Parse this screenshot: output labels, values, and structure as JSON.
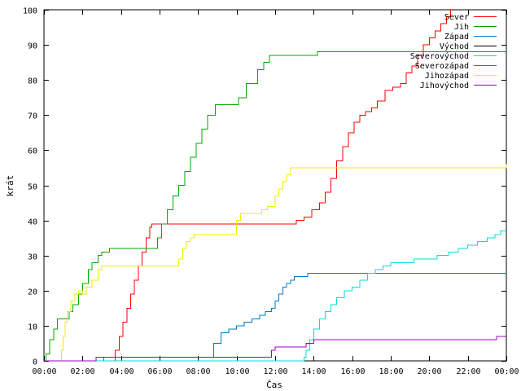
{
  "chart_data": {
    "type": "line",
    "xlabel": "Čas",
    "ylabel": "krát",
    "xlim": [
      0,
      24
    ],
    "ylim": [
      0,
      100
    ],
    "x_tick_labels": [
      "00:00",
      "02:00",
      "04:00",
      "06:00",
      "08:00",
      "10:00",
      "12:00",
      "14:00",
      "16:00",
      "18:00",
      "20:00",
      "22:00",
      "00:00"
    ],
    "y_tick_labels": [
      "0",
      "10",
      "20",
      "30",
      "40",
      "50",
      "60",
      "70",
      "80",
      "90",
      "100"
    ],
    "grid": false,
    "legend_position": "top-right",
    "step": true,
    "series": [
      {
        "name": "Sever",
        "color": "#ff0000",
        "x": [
          0,
          3.5,
          3.7,
          3.9,
          4.1,
          4.3,
          4.5,
          4.7,
          4.9,
          5.1,
          5.3,
          5.5,
          5.6,
          12.9,
          13.1,
          13.5,
          13.9,
          14.3,
          14.6,
          14.9,
          15.2,
          15.5,
          15.8,
          16.1,
          16.4,
          16.7,
          17.0,
          17.3,
          17.7,
          18.1,
          18.5,
          18.8,
          19.1,
          19.4,
          19.7,
          20.0,
          20.3,
          20.6,
          20.9,
          21.1
        ],
        "y": [
          0,
          0,
          3,
          7,
          11,
          15,
          19,
          23,
          27,
          31,
          35,
          38,
          39,
          39,
          40,
          41,
          43,
          45,
          48,
          52,
          57,
          61,
          65,
          68,
          70,
          71,
          72,
          74,
          77,
          78,
          79,
          82,
          84,
          87,
          90,
          92,
          94,
          96,
          98,
          100
        ]
      },
      {
        "name": "Jih",
        "color": "#00aa00",
        "x": [
          0,
          0.1,
          0.3,
          0.5,
          0.7,
          1.0,
          1.3,
          1.5,
          1.8,
          2.0,
          2.3,
          2.5,
          2.8,
          3.0,
          3.4,
          5.6,
          5.9,
          6.1,
          6.4,
          6.7,
          7.0,
          7.3,
          7.6,
          7.9,
          8.2,
          8.5,
          8.9,
          9.2,
          9.5,
          9.8,
          10.1,
          10.5,
          10.8,
          11.1,
          11.4,
          11.7,
          11.9,
          14.2,
          24
        ],
        "y": [
          0,
          2,
          6,
          9,
          12,
          12,
          14,
          16,
          19,
          22,
          26,
          28,
          30,
          31,
          32,
          32,
          35,
          39,
          43,
          47,
          50,
          54,
          58,
          62,
          66,
          70,
          73,
          73,
          73,
          73,
          75,
          79,
          79,
          83,
          85,
          87,
          87,
          88,
          88
        ]
      },
      {
        "name": "Západ",
        "color": "#0077cc",
        "x": [
          0,
          2.8,
          3.1,
          8.7,
          8.8,
          9.2,
          9.6,
          10.0,
          10.4,
          10.8,
          11.2,
          11.5,
          11.8,
          12.0,
          12.2,
          12.4,
          12.6,
          12.8,
          13.0,
          13.3,
          13.7,
          24
        ],
        "y": [
          0,
          0,
          1,
          1,
          5,
          8,
          9,
          10,
          11,
          12,
          13,
          14,
          15,
          17,
          19,
          21,
          22,
          23,
          24,
          24,
          25,
          25
        ]
      },
      {
        "name": "Východ",
        "color": "#000000",
        "x": [
          0,
          24
        ],
        "y": [
          0,
          0
        ]
      },
      {
        "name": "Severovýchod",
        "color": "#00dddd",
        "x": [
          0,
          13.4,
          13.5,
          13.6,
          13.8,
          14.0,
          14.3,
          14.6,
          14.9,
          15.2,
          15.6,
          16.0,
          16.4,
          16.8,
          17.2,
          17.6,
          18.0,
          18.6,
          19.2,
          19.8,
          20.4,
          21.0,
          21.5,
          22.0,
          22.5,
          23.0,
          23.4,
          23.7,
          24
        ],
        "y": [
          0,
          0,
          1,
          3,
          6,
          9,
          12,
          14,
          16,
          18,
          20,
          21,
          23,
          25,
          26,
          27,
          28,
          28,
          29,
          29,
          30,
          31,
          32,
          33,
          34,
          35,
          36,
          37,
          37
        ]
      },
      {
        "name": "Severozápad",
        "color": "#00aa00",
        "x": [
          0,
          0.1,
          0.3,
          0.5,
          0.7,
          1.0,
          1.3,
          1.5,
          1.8,
          2.0,
          2.3,
          2.5,
          2.8,
          3.0,
          3.4,
          5.6,
          5.9,
          6.1,
          6.4,
          6.7,
          7.0,
          7.3,
          7.6,
          7.9,
          8.2,
          8.5,
          8.9,
          9.2,
          9.5,
          9.8,
          10.1,
          10.5,
          10.8,
          11.1,
          11.4,
          11.7,
          11.9,
          14.2,
          24
        ],
        "y": [
          0,
          2,
          6,
          9,
          12,
          12,
          14,
          16,
          19,
          22,
          26,
          28,
          30,
          31,
          32,
          32,
          35,
          39,
          43,
          47,
          50,
          54,
          58,
          62,
          66,
          70,
          73,
          73,
          73,
          73,
          75,
          79,
          79,
          83,
          85,
          87,
          87,
          88,
          88
        ]
      },
      {
        "name": "Jihozápad",
        "color": "#eeee00",
        "x": [
          0,
          0.8,
          0.9,
          1.0,
          1.1,
          1.2,
          1.4,
          1.6,
          1.8,
          2.0,
          2.2,
          2.5,
          2.8,
          3.0,
          3.4,
          6.9,
          7.0,
          7.2,
          7.4,
          7.6,
          7.8,
          8.0,
          9.8,
          10.0,
          10.2,
          10.5,
          10.9,
          11.3,
          11.6,
          12.0,
          12.2,
          12.4,
          12.6,
          12.8,
          22.4,
          24
        ],
        "y": [
          0,
          0,
          3,
          7,
          11,
          14,
          17,
          19,
          20,
          19,
          21,
          23,
          26,
          27,
          27,
          27,
          29,
          32,
          34,
          35,
          36,
          36,
          36,
          40,
          42,
          42,
          42,
          43,
          44,
          47,
          49,
          51,
          53,
          55,
          55,
          56
        ]
      },
      {
        "name": "Jihovýchod",
        "color": "#9900cc",
        "x": [
          0,
          2.5,
          2.7,
          11.6,
          11.8,
          12.0,
          12.2,
          13.4,
          13.6,
          13.8,
          14.0,
          23.4,
          23.5,
          24
        ],
        "y": [
          0,
          0,
          1,
          1,
          3,
          4,
          4,
          4,
          5,
          5,
          6,
          6,
          7,
          7
        ]
      }
    ]
  }
}
